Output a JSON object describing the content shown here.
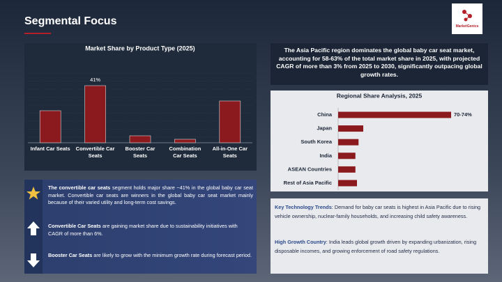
{
  "header": {
    "title": "Segmental Focus",
    "logo": "MarketGenics"
  },
  "chart_data": [
    {
      "type": "bar",
      "title": "Market Share by Product Type (2025)",
      "categories": [
        "Infant Car Seats",
        "Convertible Car Seats",
        "Booster Car Seats",
        "Combination Car Seats",
        "All-in-One Car Seats"
      ],
      "values": [
        23,
        41,
        5,
        2.5,
        30
      ],
      "value_labels": [
        null,
        "41%",
        null,
        null,
        null
      ],
      "color": "#8b1a1f",
      "ylim": [
        0,
        50
      ]
    },
    {
      "type": "hbar",
      "title": "Regional Share Analysis, 2025",
      "categories": [
        "China",
        "Japan",
        "South Korea",
        "India",
        "ASEAN Countries",
        "Rest of Asia Pacific"
      ],
      "values": [
        72,
        16,
        13,
        11,
        11,
        12
      ],
      "value_labels": [
        "70-74%",
        null,
        null,
        null,
        null,
        null
      ],
      "color": "#8b1a1f",
      "xlim": [
        0,
        80
      ]
    }
  ],
  "callout": "The Asia Pacific region dominates the global baby car seat market, accounting for 58-63% of the total market share in 2025, with projected CAGR of more than 3% from 2025 to 2030, significantly outpacing global growth rates.",
  "notes": [
    {
      "bold": "The convertible car seats",
      "text": " segment holds major share ~41% in the global baby car seat market. Convertible car seats are winners in the global baby car seat market mainly because of their varied utility and long-term cost savings."
    },
    {
      "bold": "Convertible Car Seats",
      "text": " are gaining market share due to sustainability initiatives with CAGR of more than 6%."
    },
    {
      "bold": "Booster Car Seats",
      "text": " are likely to grow with the minimum growth rate during forecast period."
    }
  ],
  "trends": [
    {
      "bold": "Key Technology Trends",
      "text": ": Demand for baby car seats is highest in Asia Pacific due to rising vehicle ownership, nuclear-family households, and increasing child safety awareness."
    },
    {
      "bold": "High Growth Country",
      "text": ": India leads global growth driven by expanding urbanization, rising disposable incomes, and growing enforcement of road safety regulations."
    }
  ]
}
